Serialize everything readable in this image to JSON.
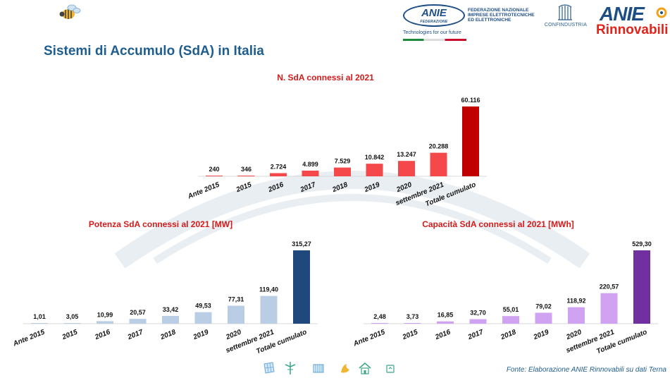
{
  "slide": {
    "title": "Sistemi di Accumulo (SdA)  in Italia",
    "source": "Fonte: Elaborazione ANIE Rinnovabili su dati Terna"
  },
  "logos": {
    "anie_federazione": {
      "name": "ANIE",
      "sub": "FEDERAZIONE",
      "text": "FEDERAZIONE NAZIONALE\nIMPRESE ELETTROTECNICHE\nED ELETTRONICHE",
      "tagline": "Technologies for our future"
    },
    "confindustria": {
      "name": "CONFINDUSTRIA"
    },
    "anie_rinnovabili": {
      "name_top": "ANIE",
      "name_bottom": "Rinnovabili"
    }
  },
  "colors": {
    "title_blue": "#1f5d8e",
    "chart_title_red": "#d51a1a",
    "n_bar": "#f4484a",
    "n_total": "#c00000",
    "p_bar": "#b9cde4",
    "p_total": "#1f497d",
    "c_bar": "#cfa3f2",
    "c_total": "#7030a0"
  },
  "footer_icons": [
    "solar-panel-icon",
    "wind-turbine-icon",
    "solar-collector-icon",
    "hydro-icon",
    "green-building-icon",
    "recycle-icon"
  ],
  "chart_data": [
    {
      "id": "n",
      "type": "bar",
      "title": "N. SdA connessi al 2021",
      "categories": [
        "Ante 2015",
        "2015",
        "2016",
        "2017",
        "2018",
        "2019",
        "2020",
        "settembre 2021",
        "Totale cumulato"
      ],
      "values": [
        240,
        346,
        2724,
        4899,
        7529,
        10842,
        13247,
        20288,
        60116
      ],
      "value_labels": [
        "240",
        "346",
        "2.724",
        "4.899",
        "7.529",
        "10.842",
        "13.247",
        "20.288",
        "60.116"
      ],
      "ylim": [
        0,
        60116
      ],
      "grid": false,
      "legend": "none"
    },
    {
      "id": "p",
      "type": "bar",
      "title": "Potenza SdA connessi al 2021 [MW]",
      "categories": [
        "Ante 2015",
        "2015",
        "2016",
        "2017",
        "2018",
        "2019",
        "2020",
        "settembre 2021",
        "Totale cumulato"
      ],
      "values": [
        1.01,
        3.05,
        10.99,
        20.57,
        33.42,
        49.53,
        77.31,
        119.4,
        315.27
      ],
      "value_labels": [
        "1,01",
        "3,05",
        "10,99",
        "20,57",
        "33,42",
        "49,53",
        "77,31",
        "119,40",
        "315,27"
      ],
      "ylim": [
        0,
        315.27
      ],
      "grid": false,
      "legend": "none"
    },
    {
      "id": "c",
      "type": "bar",
      "title": "Capacità SdA connessi al 2021 [MWh]",
      "categories": [
        "Ante 2015",
        "2015",
        "2016",
        "2017",
        "2018",
        "2019",
        "2020",
        "settembre 2021",
        "Totale cumulato"
      ],
      "values": [
        2.48,
        3.73,
        16.85,
        32.7,
        55.01,
        79.02,
        118.92,
        220.57,
        529.3
      ],
      "value_labels": [
        "2,48",
        "3,73",
        "16,85",
        "32,70",
        "55,01",
        "79,02",
        "118,92",
        "220,57",
        "529,30"
      ],
      "ylim": [
        0,
        529.3
      ],
      "grid": false,
      "legend": "none"
    }
  ]
}
